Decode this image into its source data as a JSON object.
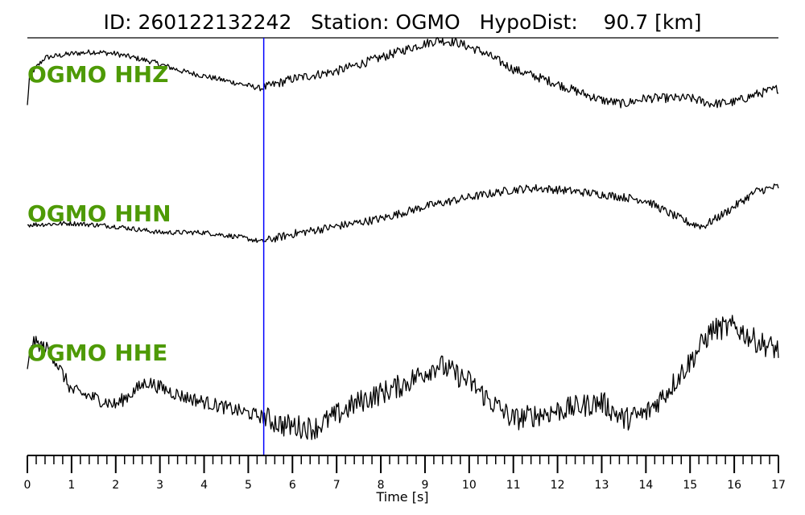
{
  "header": {
    "title": "ID: 260122132242   Station: OGMO   HypoDist:    90.7 [km]"
  },
  "colors": {
    "trace": "#000000",
    "label": "#4e9a06",
    "pick_line": "#0000ff",
    "axis": "#000000"
  },
  "chart_data": {
    "type": "line",
    "title": "ID: 260122132242   Station: OGMO   HypoDist:    90.7 [km]",
    "xlabel": "Time [s]",
    "ylabel": "",
    "xlim": [
      0,
      17
    ],
    "x_ticks": [
      "0",
      "1",
      "2",
      "3",
      "4",
      "5",
      "6",
      "7",
      "8",
      "9",
      "10",
      "11",
      "12",
      "13",
      "14",
      "15",
      "16",
      "17"
    ],
    "minor_tick_step": 0.2,
    "pick_time": 5.35,
    "grid": false,
    "legend": "none",
    "series": [
      {
        "name": "OGMO HHZ",
        "t": [
          0,
          0.05,
          0.4,
          1.0,
          1.5,
          2.0,
          2.8,
          3.5,
          4.5,
          5.3,
          6.0,
          7.0,
          8.0,
          8.8,
          9.3,
          9.7,
          10.3,
          11.0,
          11.8,
          12.5,
          13.0,
          13.5,
          14.0,
          15.0,
          15.5,
          16.0,
          16.5,
          17.0
        ],
        "values": [
          -0.7,
          0.1,
          0.55,
          0.65,
          0.7,
          0.65,
          0.45,
          0.2,
          -0.05,
          -0.25,
          0.0,
          0.2,
          0.55,
          0.85,
          1.0,
          0.95,
          0.7,
          0.25,
          -0.05,
          -0.35,
          -0.55,
          -0.65,
          -0.5,
          -0.5,
          -0.65,
          -0.6,
          -0.4,
          -0.25
        ],
        "noise": 0.07
      },
      {
        "name": "OGMO HHN",
        "t": [
          0,
          1.0,
          2.0,
          3.0,
          4.0,
          4.8,
          5.3,
          6.0,
          7.0,
          8.0,
          9.0,
          10.0,
          11.0,
          11.5,
          12.0,
          13.0,
          14.0,
          14.5,
          15.0,
          15.3,
          15.8,
          16.5,
          17.0
        ],
        "values": [
          -0.3,
          -0.25,
          -0.35,
          -0.55,
          -0.55,
          -0.7,
          -0.85,
          -0.6,
          -0.35,
          -0.1,
          0.3,
          0.6,
          0.85,
          0.9,
          0.85,
          0.7,
          0.5,
          0.1,
          -0.25,
          -0.35,
          0.1,
          0.8,
          0.95
        ],
        "noise": 0.08
      },
      {
        "name": "OGMO HHE",
        "t": [
          0,
          0.1,
          0.5,
          1.0,
          2.0,
          2.7,
          3.5,
          4.5,
          5.3,
          5.8,
          6.5,
          7.5,
          8.5,
          9.3,
          10.0,
          10.5,
          11.0,
          12.0,
          13.0,
          13.5,
          14.0,
          14.5,
          15.0,
          15.5,
          16.0,
          16.5,
          17.0
        ],
        "values": [
          0.2,
          0.75,
          0.6,
          -0.1,
          -0.35,
          0.05,
          -0.2,
          -0.4,
          -0.55,
          -0.7,
          -0.75,
          -0.3,
          0.0,
          0.35,
          0.05,
          -0.3,
          -0.6,
          -0.45,
          -0.3,
          -0.6,
          -0.5,
          -0.1,
          0.4,
          0.95,
          1.0,
          0.75,
          0.6
        ],
        "noise": 0.12
      }
    ]
  }
}
